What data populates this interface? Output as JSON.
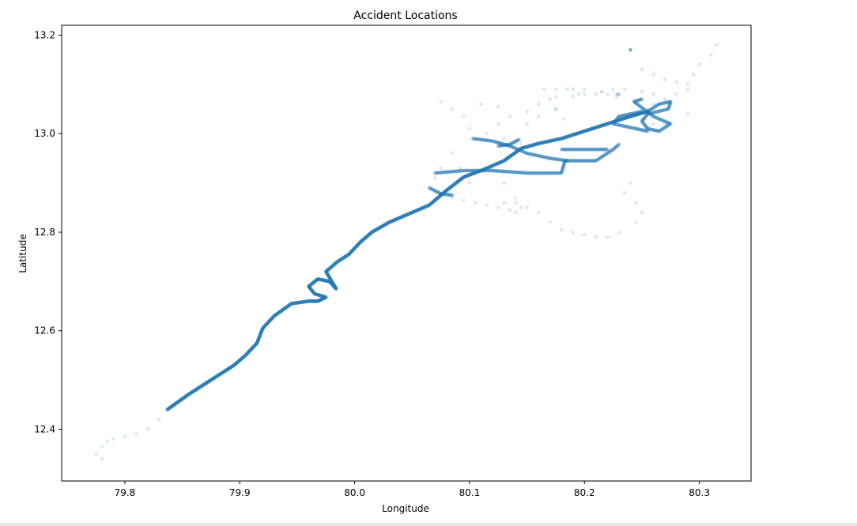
{
  "chart_data": {
    "type": "scatter",
    "title": "Accident Locations",
    "xlabel": "Longitude",
    "ylabel": "Latitude",
    "xlim": [
      79.745,
      80.345
    ],
    "ylim": [
      12.295,
      13.22
    ],
    "xticks": [
      79.8,
      79.9,
      80.0,
      80.1,
      80.2,
      80.3
    ],
    "xtick_labels": [
      "79.8",
      "79.9",
      "80.0",
      "80.1",
      "80.2",
      "80.3"
    ],
    "yticks": [
      12.4,
      12.6,
      12.8,
      13.0,
      13.2
    ],
    "ytick_labels": [
      "12.4",
      "12.6",
      "12.8",
      "13.0",
      "13.2"
    ],
    "grid": false,
    "color": "#1f77b4",
    "point_alpha": 0.15,
    "main_route": {
      "lon": [
        79.837,
        79.855,
        79.875,
        79.885,
        79.895,
        79.905,
        79.915,
        79.92,
        79.93,
        79.945,
        79.96,
        79.968,
        79.975,
        79.965,
        79.96,
        79.968,
        79.978,
        79.984,
        79.975,
        79.985,
        79.995,
        80.005,
        80.015,
        80.03,
        80.045,
        80.065,
        80.08,
        80.095,
        80.11,
        80.13,
        80.145,
        80.16,
        80.18,
        80.2,
        80.22,
        80.24,
        80.255
      ],
      "lat": [
        12.44,
        12.47,
        12.5,
        12.515,
        12.53,
        12.55,
        12.575,
        12.605,
        12.63,
        12.655,
        12.66,
        12.66,
        12.668,
        12.675,
        12.69,
        12.705,
        12.7,
        12.685,
        12.72,
        12.74,
        12.755,
        12.78,
        12.8,
        12.82,
        12.835,
        12.855,
        12.885,
        12.912,
        12.925,
        12.945,
        12.97,
        12.98,
        12.99,
        13.005,
        13.02,
        13.035,
        13.045
      ]
    },
    "secondary_routes": [
      {
        "lon": [
          80.255,
          80.265,
          80.275,
          80.273,
          80.255,
          80.25,
          80.255,
          80.265,
          80.275,
          80.26,
          80.243,
          80.25
        ],
        "lat": [
          13.045,
          13.06,
          13.065,
          13.05,
          13.04,
          13.025,
          13.01,
          13.005,
          13.02,
          13.035,
          13.065,
          13.07
        ]
      },
      {
        "lon": [
          80.25,
          80.23,
          80.225,
          80.245,
          80.255
        ],
        "lat": [
          13.045,
          13.035,
          13.02,
          13.01,
          13.005
        ]
      },
      {
        "lon": [
          80.07,
          80.095,
          80.12,
          80.15,
          80.18,
          80.183,
          80.19,
          80.21,
          80.225,
          80.23
        ],
        "lat": [
          12.92,
          12.925,
          12.925,
          12.92,
          12.92,
          12.945,
          12.945,
          12.945,
          12.968,
          12.978
        ]
      },
      {
        "lon": [
          80.18,
          80.2,
          80.22
        ],
        "lat": [
          12.968,
          12.968,
          12.968
        ]
      },
      {
        "lon": [
          80.103,
          80.12,
          80.135,
          80.15,
          80.17,
          80.185
        ],
        "lat": [
          12.99,
          12.985,
          12.975,
          12.96,
          12.95,
          12.945
        ]
      },
      {
        "lon": [
          80.065,
          80.075,
          80.085
        ],
        "lat": [
          12.89,
          12.878,
          12.875
        ]
      },
      {
        "lon": [
          80.125,
          80.135,
          80.143
        ],
        "lat": [
          12.975,
          12.978,
          12.988
        ]
      }
    ],
    "sparse_points": {
      "lon": [
        79.775,
        79.78,
        79.785,
        79.79,
        79.8,
        79.81,
        79.82,
        79.83,
        79.78,
        80.075,
        80.085,
        80.095,
        80.11,
        80.125,
        80.1,
        80.115,
        80.13,
        80.145,
        80.085,
        80.092,
        80.1,
        80.13,
        80.14,
        80.15,
        80.16,
        80.17,
        80.18,
        80.19,
        80.2,
        80.21,
        80.22,
        80.23,
        80.25,
        80.26,
        80.27,
        80.28,
        80.29,
        80.295,
        80.3,
        80.31,
        80.315,
        80.29,
        80.28,
        80.27,
        80.26,
        80.255,
        80.25,
        80.26,
        80.27,
        80.29,
        80.075,
        80.07,
        80.075,
        80.085,
        80.095,
        80.105,
        80.115,
        80.125,
        80.135,
        80.14,
        80.145,
        80.14,
        80.13,
        80.125,
        80.135,
        80.15,
        80.16,
        80.175,
        80.195,
        80.21,
        80.22,
        80.228,
        80.229,
        80.23,
        80.23,
        80.228,
        80.215,
        80.2,
        80.19,
        80.185,
        80.175,
        80.165,
        80.17,
        80.175,
        80.182,
        80.15,
        80.16,
        80.175,
        80.19,
        80.2,
        80.215,
        80.225,
        80.235,
        80.25,
        80.26,
        80.24,
        80.235,
        80.245,
        80.25,
        80.245
      ],
      "lat": [
        12.35,
        12.365,
        12.375,
        12.38,
        12.385,
        12.39,
        12.4,
        12.42,
        12.34,
        13.065,
        13.05,
        13.035,
        13.06,
        13.055,
        13.01,
        13.0,
        12.99,
        12.98,
        12.96,
        12.93,
        12.9,
        12.86,
        12.87,
        12.85,
        12.84,
        12.82,
        12.805,
        12.8,
        12.795,
        12.79,
        12.79,
        12.8,
        13.13,
        13.12,
        13.11,
        13.105,
        13.1,
        13.12,
        13.14,
        13.16,
        13.18,
        13.09,
        13.08,
        13.07,
        13.06,
        13.05,
        13.03,
        13.02,
        13.02,
        13.04,
        12.93,
        12.91,
        12.875,
        12.87,
        12.865,
        12.86,
        12.855,
        12.85,
        12.845,
        12.84,
        12.85,
        12.86,
        12.9,
        13.02,
        13.035,
        13.045,
        13.06,
        13.075,
        13.08,
        13.08,
        13.08,
        13.08,
        13.08,
        13.08,
        13.08,
        13.075,
        13.085,
        13.09,
        13.09,
        13.09,
        13.09,
        13.09,
        13.07,
        13.05,
        13.03,
        13.02,
        13.035,
        13.05,
        13.075,
        13.08,
        13.085,
        13.09,
        13.09,
        13.085,
        13.08,
        12.9,
        12.88,
        12.86,
        12.84,
        12.82
      ]
    },
    "outliers": {
      "lon": [
        80.24
      ],
      "lat": [
        13.17
      ]
    }
  }
}
